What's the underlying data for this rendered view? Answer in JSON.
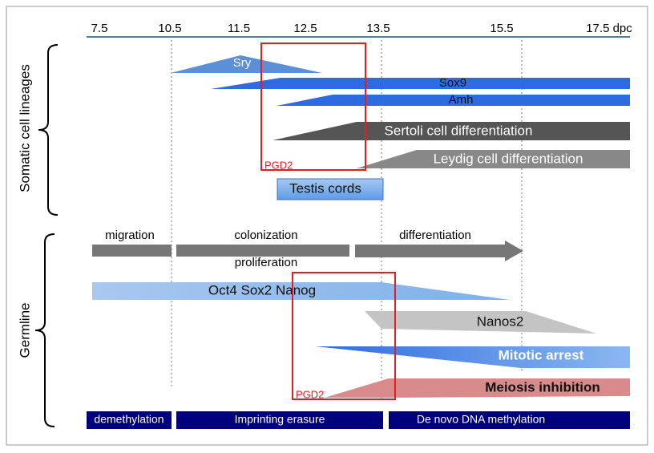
{
  "axis": {
    "ticks": [
      "7.5",
      "10.5",
      "11.5",
      "12.5",
      "13.5",
      "15.5",
      "17.5 dpc"
    ]
  },
  "groups": [
    "Somatic cell lineages",
    "Germline"
  ],
  "somatic": {
    "sry": "Sry",
    "sox9": "Sox9",
    "amh": "Amh",
    "sertoli": "Sertoli cell differentiation",
    "leydig": "Leydig cell differentiation",
    "pgd2": "PGD2",
    "testis_cords": "Testis cords"
  },
  "germline": {
    "migration": "migration",
    "colonization": "colonization",
    "proliferation": "proliferation",
    "differentiation": "differentiation",
    "pluripotency": "Oct4 Sox2 Nanog",
    "nanos2": "Nanos2",
    "mitotic_arrest": "Mitotic arrest",
    "pgd2": "PGD2",
    "meiosis_inhibition": "Meiosis inhibition"
  },
  "methylation": [
    "demethylation",
    "Imprinting erasure",
    "De novo DNA methylation"
  ]
}
